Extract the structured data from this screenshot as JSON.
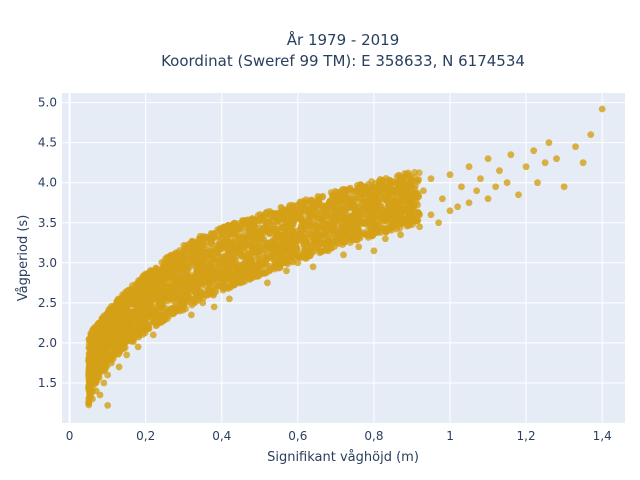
{
  "chart_data": {
    "type": "scatter",
    "title_line1": "År 1979 - 2019",
    "title_line2": "Koordinat (Sweref 99 TM): E 358633, N 6174534",
    "xlabel": "Signifikant våghöjd (m)",
    "ylabel": "Vågperiod (s)",
    "xlim": [
      -0.02,
      1.46
    ],
    "ylim": [
      1.0,
      5.12
    ],
    "x_ticks": [
      0,
      0.2,
      0.4,
      0.6,
      0.8,
      1,
      1.2,
      1.4
    ],
    "x_tick_labels": [
      "0",
      "0,2",
      "0,4",
      "0,6",
      "0,8",
      "1",
      "1,2",
      "1,4"
    ],
    "y_ticks": [
      1.5,
      2.0,
      2.5,
      3.0,
      3.5,
      4.0,
      4.5,
      5.0
    ],
    "y_tick_labels": [
      "1.5",
      "2.0",
      "2.5",
      "3.0",
      "3.5",
      "4.0",
      "4.5",
      "5.0"
    ],
    "grid": true,
    "marker_color": "#D4A017",
    "background_color": "#E5ECF6",
    "series": [
      {
        "points": [
          [
            0.05,
            1.25
          ],
          [
            0.05,
            1.45
          ],
          [
            0.06,
            1.3
          ],
          [
            0.06,
            1.55
          ],
          [
            0.07,
            1.4
          ],
          [
            0.07,
            1.6
          ],
          [
            0.08,
            1.35
          ],
          [
            0.08,
            1.7
          ],
          [
            0.09,
            1.5
          ],
          [
            0.09,
            1.85
          ],
          [
            0.1,
            1.22
          ],
          [
            0.1,
            1.6
          ],
          [
            0.1,
            2.0
          ],
          [
            0.11,
            1.75
          ],
          [
            0.11,
            2.1
          ],
          [
            0.12,
            1.9
          ],
          [
            0.12,
            2.3
          ],
          [
            0.13,
            1.7
          ],
          [
            0.13,
            2.2
          ],
          [
            0.14,
            2.0
          ],
          [
            0.14,
            2.45
          ],
          [
            0.15,
            1.85
          ],
          [
            0.15,
            2.3
          ],
          [
            0.16,
            2.1
          ],
          [
            0.16,
            2.55
          ],
          [
            0.18,
            1.95
          ],
          [
            0.18,
            2.4
          ],
          [
            0.19,
            2.75
          ],
          [
            0.2,
            2.2
          ],
          [
            0.2,
            2.6
          ],
          [
            0.22,
            2.1
          ],
          [
            0.22,
            2.45
          ],
          [
            0.23,
            2.8
          ],
          [
            0.25,
            2.3
          ],
          [
            0.25,
            2.65
          ],
          [
            0.26,
            2.9
          ],
          [
            0.28,
            2.4
          ],
          [
            0.28,
            2.75
          ],
          [
            0.3,
            2.55
          ],
          [
            0.3,
            2.95
          ],
          [
            0.32,
            2.35
          ],
          [
            0.32,
            2.7
          ],
          [
            0.33,
            3.0
          ],
          [
            0.35,
            2.5
          ],
          [
            0.35,
            2.85
          ],
          [
            0.37,
            2.65
          ],
          [
            0.37,
            3.1
          ],
          [
            0.38,
            2.45
          ],
          [
            0.4,
            2.7
          ],
          [
            0.4,
            3.05
          ],
          [
            0.42,
            2.55
          ],
          [
            0.42,
            2.9
          ],
          [
            0.43,
            3.25
          ],
          [
            0.45,
            2.75
          ],
          [
            0.45,
            3.1
          ],
          [
            0.47,
            2.85
          ],
          [
            0.48,
            3.2
          ],
          [
            0.5,
            2.9
          ],
          [
            0.5,
            3.3
          ],
          [
            0.52,
            2.75
          ],
          [
            0.52,
            3.1
          ],
          [
            0.54,
            3.0
          ],
          [
            0.55,
            3.35
          ],
          [
            0.57,
            2.9
          ],
          [
            0.57,
            3.25
          ],
          [
            0.58,
            3.45
          ],
          [
            0.6,
            3.0
          ],
          [
            0.6,
            3.3
          ],
          [
            0.62,
            3.15
          ],
          [
            0.62,
            3.5
          ],
          [
            0.64,
            2.95
          ],
          [
            0.65,
            3.3
          ],
          [
            0.66,
            3.55
          ],
          [
            0.68,
            3.15
          ],
          [
            0.68,
            3.45
          ],
          [
            0.7,
            3.25
          ],
          [
            0.7,
            3.6
          ],
          [
            0.72,
            3.1
          ],
          [
            0.72,
            3.4
          ],
          [
            0.74,
            3.3
          ],
          [
            0.75,
            3.65
          ],
          [
            0.76,
            3.2
          ],
          [
            0.77,
            3.5
          ],
          [
            0.78,
            3.35
          ],
          [
            0.79,
            3.75
          ],
          [
            0.8,
            3.4
          ],
          [
            0.8,
            3.15
          ],
          [
            0.82,
            3.55
          ],
          [
            0.83,
            3.3
          ],
          [
            0.84,
            3.85
          ],
          [
            0.85,
            3.45
          ],
          [
            0.86,
            3.65
          ],
          [
            0.87,
            3.35
          ],
          [
            0.88,
            3.95
          ],
          [
            0.9,
            3.55
          ],
          [
            0.9,
            3.75
          ],
          [
            0.92,
            3.45
          ],
          [
            0.93,
            3.9
          ],
          [
            0.95,
            3.6
          ],
          [
            0.95,
            4.05
          ],
          [
            0.97,
            3.5
          ],
          [
            0.98,
            3.8
          ],
          [
            1.0,
            3.65
          ],
          [
            1.0,
            4.1
          ],
          [
            1.02,
            3.7
          ],
          [
            1.03,
            3.95
          ],
          [
            1.05,
            3.75
          ],
          [
            1.05,
            4.2
          ],
          [
            1.07,
            3.9
          ],
          [
            1.08,
            4.05
          ],
          [
            1.1,
            3.8
          ],
          [
            1.1,
            4.3
          ],
          [
            1.12,
            3.95
          ],
          [
            1.13,
            4.15
          ],
          [
            1.15,
            4.0
          ],
          [
            1.16,
            4.35
          ],
          [
            1.18,
            3.85
          ],
          [
            1.2,
            4.2
          ],
          [
            1.22,
            4.4
          ],
          [
            1.23,
            4.0
          ],
          [
            1.25,
            4.25
          ],
          [
            1.26,
            4.5
          ],
          [
            1.28,
            4.3
          ],
          [
            1.3,
            3.95
          ],
          [
            1.33,
            4.45
          ],
          [
            1.35,
            4.25
          ],
          [
            1.37,
            4.6
          ],
          [
            1.4,
            4.92
          ]
        ]
      }
    ]
  }
}
